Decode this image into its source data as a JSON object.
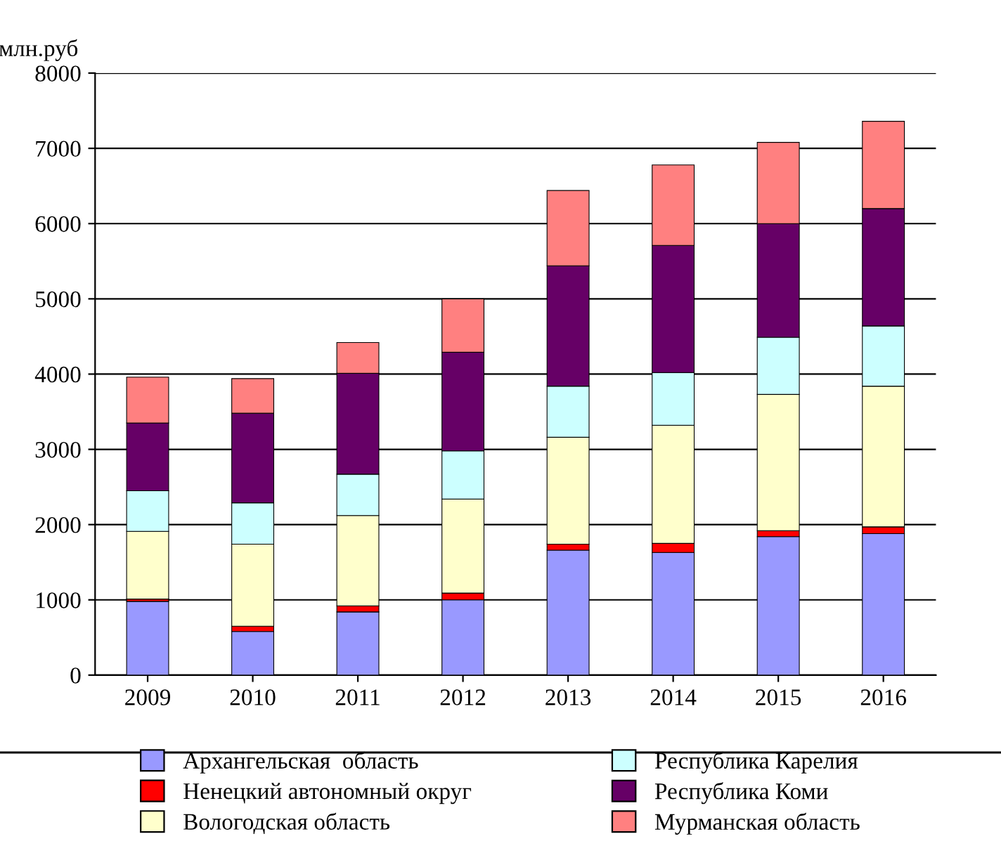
{
  "chart_data": {
    "type": "bar",
    "stacked": true,
    "ylabel": "млн.руб",
    "categories": [
      "2009",
      "2010",
      "2011",
      "2012",
      "2013",
      "2014",
      "2015",
      "2016"
    ],
    "series": [
      {
        "name": "Архангельская  область",
        "color": "#9999ff",
        "values": [
          980,
          580,
          840,
          1000,
          1660,
          1630,
          1840,
          1880
        ]
      },
      {
        "name": "Ненецкий автономный округ",
        "color": "#ff0000",
        "values": [
          30,
          70,
          80,
          90,
          80,
          120,
          80,
          90
        ]
      },
      {
        "name": "Вологодская область",
        "color": "#ffffcc",
        "values": [
          900,
          1090,
          1200,
          1250,
          1420,
          1570,
          1810,
          1870
        ]
      },
      {
        "name": "Республика Карелия",
        "color": "#ccffff",
        "values": [
          540,
          550,
          550,
          640,
          680,
          700,
          760,
          800
        ]
      },
      {
        "name": "Республика Коми",
        "color": "#660066",
        "values": [
          900,
          1190,
          1340,
          1310,
          1600,
          1690,
          1510,
          1560
        ]
      },
      {
        "name": "Мурманская область",
        "color": "#ff8080",
        "values": [
          610,
          460,
          410,
          710,
          1000,
          1070,
          1080,
          1160
        ]
      }
    ],
    "ylim": [
      0,
      8000
    ],
    "yticks": [
      0,
      1000,
      2000,
      3000,
      4000,
      5000,
      6000,
      7000,
      8000
    ],
    "grid": "y",
    "legend": "bottom"
  }
}
